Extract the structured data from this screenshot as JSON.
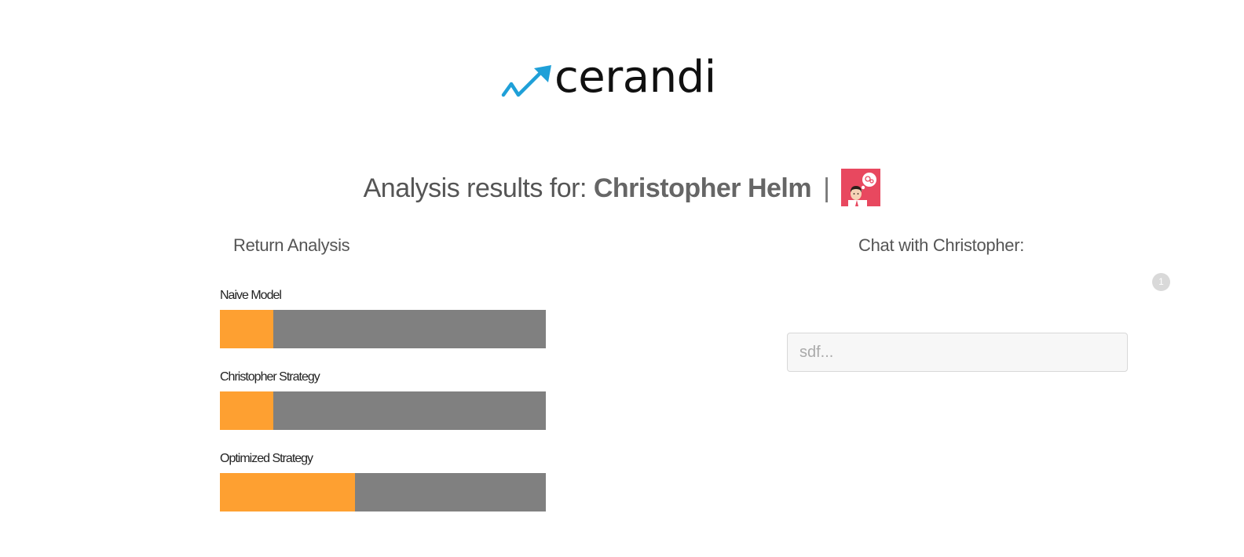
{
  "brand": {
    "name": "cerandi",
    "accent_color": "#1fa0d8",
    "icon": "trend-arrow-icon"
  },
  "heading": {
    "prefix": "Analysis results for:",
    "name": "Christopher Helm",
    "separator": "|",
    "avatar_icon": "thinking-person-avatar",
    "avatar_color": "#e8485f"
  },
  "return_analysis": {
    "title": "Return Analysis",
    "bar_colors": {
      "fill": "#fea031",
      "track": "#808080"
    },
    "bars": [
      {
        "label": "Naive Model",
        "fill_fraction": 0.165
      },
      {
        "label": "Christopher Strategy",
        "fill_fraction": 0.165
      },
      {
        "label": "Optimized Strategy",
        "fill_fraction": 0.415
      }
    ]
  },
  "chat": {
    "title": "Chat with Christopher:",
    "badge_count": "1",
    "input_value": "",
    "input_placeholder": "sdf..."
  }
}
